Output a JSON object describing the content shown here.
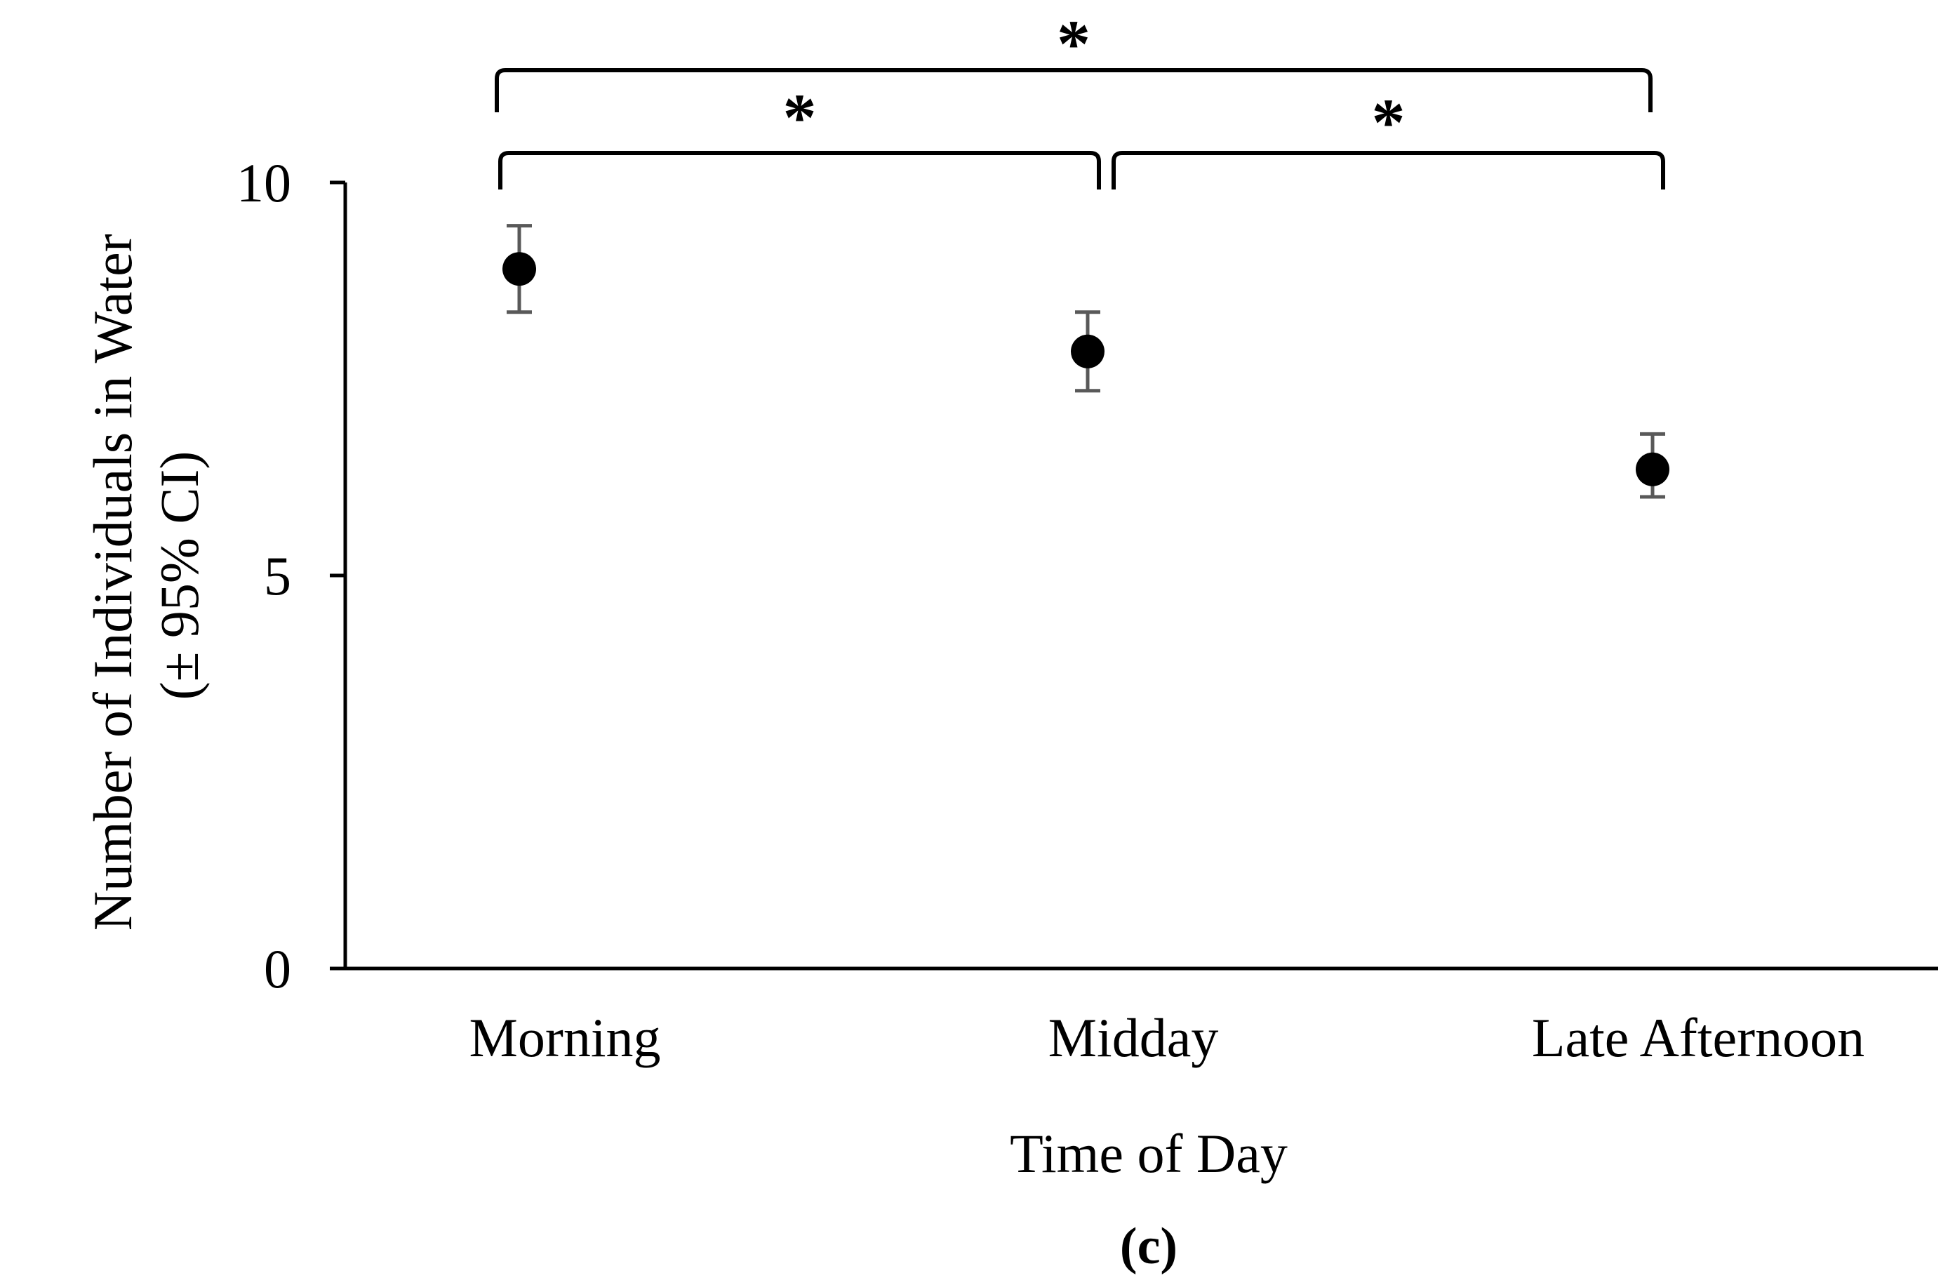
{
  "chart_data": {
    "type": "scatter",
    "categories": [
      "Morning",
      "Midday",
      "Late Afternoon"
    ],
    "series": [
      {
        "values": [
          8.9,
          7.85,
          6.35
        ],
        "ci_lower": [
          8.35,
          7.35,
          6.0
        ],
        "ci_upper": [
          9.45,
          8.35,
          6.8
        ]
      }
    ],
    "xlabel": "Time of Day",
    "ylabel_line1": "Number of Individuals in Water",
    "ylabel_line2": "(± 95% CI)",
    "ylim": [
      0,
      10
    ],
    "yticks": [
      "0",
      "5",
      "10"
    ],
    "grid": false,
    "legend": "none",
    "significance": [
      {
        "from": "Morning",
        "to": "Midday",
        "label": "*"
      },
      {
        "from": "Midday",
        "to": "Late Afternoon",
        "label": "*"
      },
      {
        "from": "Morning",
        "to": "Late Afternoon",
        "label": "*"
      }
    ],
    "panel_label": "(c)",
    "colors": {
      "point": "#000000",
      "errorbar": "#595959",
      "axis": "#000000"
    }
  }
}
